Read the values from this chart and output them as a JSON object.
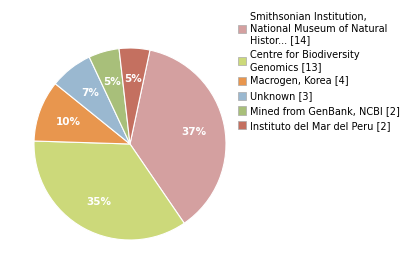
{
  "labels": [
    "Smithsonian Institution,\nNational Museum of Natural\nHistor... [14]",
    "Centre for Biodiversity\nGenomics [13]",
    "Macrogen, Korea [4]",
    "Unknown [3]",
    "Mined from GenBank, NCBI [2]",
    "Instituto del Mar del Peru [2]"
  ],
  "legend_labels": [
    "Smithsonian Institution,\nNational Museum of Natural\nHistor... [14]",
    "Centre for Biodiversity\nGenomics [13]",
    "Macrogen, Korea [4]",
    "Unknown [3]",
    "Mined from GenBank, NCBI [2]",
    "Instituto del Mar del Peru [2]"
  ],
  "values": [
    36,
    34,
    10,
    7,
    5,
    5
  ],
  "colors": [
    "#d4a0a0",
    "#ccd97a",
    "#e8964e",
    "#9ab8d0",
    "#a8bf7a",
    "#c47060"
  ],
  "startangle": 78,
  "text_color": "white",
  "font_size": 7.5,
  "legend_font_size": 7,
  "pct_distance": 0.68
}
